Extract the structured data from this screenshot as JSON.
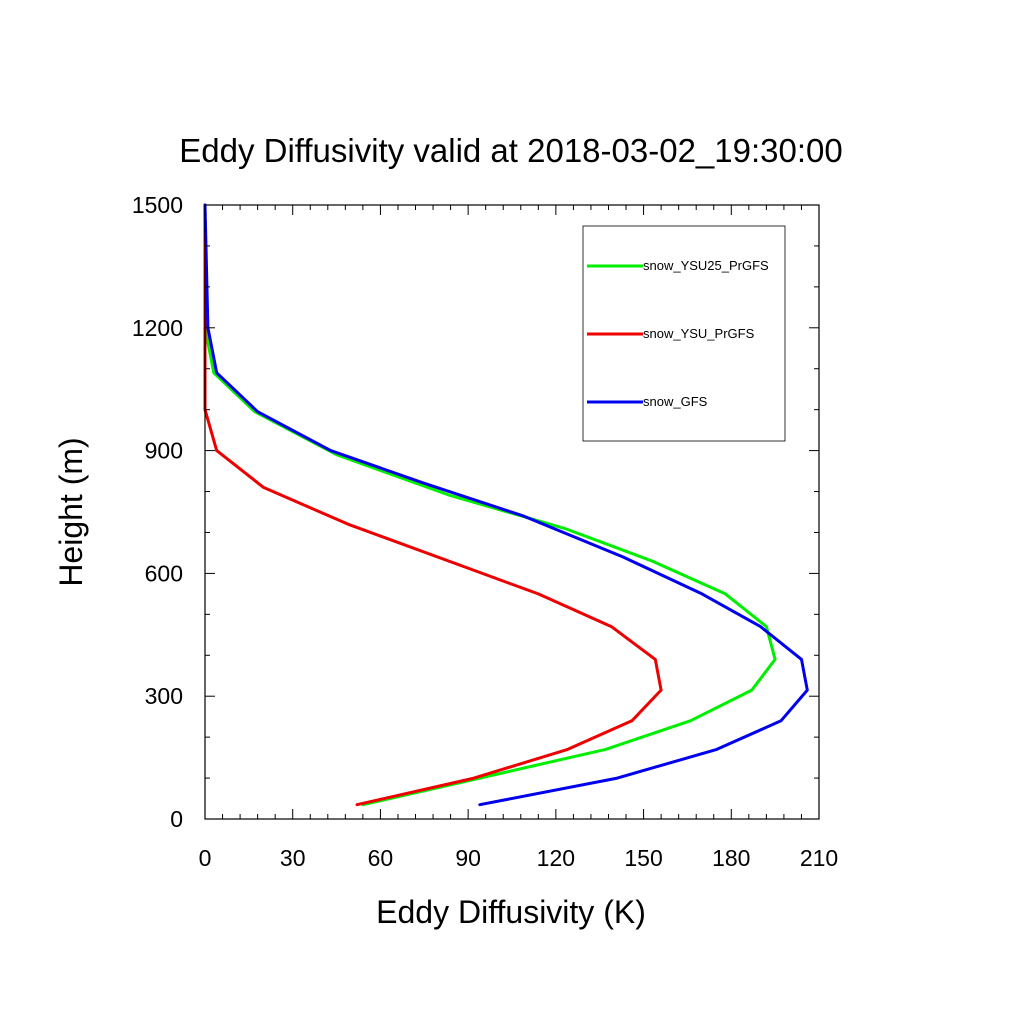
{
  "chart_data": {
    "type": "line",
    "title": "Eddy Diffusivity valid at 2018-03-02_19:30:00",
    "xlabel": "Eddy Diffusivity (K)",
    "ylabel": "Height (m)",
    "xlim": [
      0,
      210
    ],
    "ylim": [
      0,
      1500
    ],
    "x_ticks": [
      0,
      30,
      60,
      90,
      120,
      150,
      180,
      210
    ],
    "y_ticks": [
      0,
      300,
      600,
      900,
      1200,
      1500
    ],
    "x_tick_labels": [
      "0",
      "30",
      "60",
      "90",
      "120",
      "150",
      "180",
      "210"
    ],
    "y_tick_labels": [
      "0",
      "300",
      "600",
      "900",
      "1200",
      "1500"
    ],
    "grid": false,
    "legend_position": "top-right",
    "series": [
      {
        "name": "snow_YSU25_PrGFS",
        "color": "#00ee00",
        "points": [
          [
            54,
            35
          ],
          [
            94,
            100
          ],
          [
            137,
            170
          ],
          [
            166,
            240
          ],
          [
            187,
            315
          ],
          [
            195,
            390
          ],
          [
            192,
            470
          ],
          [
            178,
            550
          ],
          [
            153,
            630
          ],
          [
            123,
            710
          ],
          [
            84,
            790
          ],
          [
            45,
            890
          ],
          [
            17,
            995
          ],
          [
            3,
            1090
          ],
          [
            0,
            1200
          ],
          [
            0,
            1500
          ]
        ]
      },
      {
        "name": "snow_YSU_PrGFS",
        "color": "#ee0000",
        "points": [
          [
            52,
            35
          ],
          [
            92,
            100
          ],
          [
            124,
            170
          ],
          [
            146,
            240
          ],
          [
            156,
            315
          ],
          [
            154,
            390
          ],
          [
            139,
            470
          ],
          [
            114,
            550
          ],
          [
            93,
            605
          ],
          [
            49,
            720
          ],
          [
            20,
            810
          ],
          [
            4,
            900
          ],
          [
            0,
            1000
          ],
          [
            0,
            1200
          ],
          [
            0,
            1500
          ]
        ]
      },
      {
        "name": "snow_GFS",
        "color": "#0000ee",
        "points": [
          [
            94,
            35
          ],
          [
            141,
            100
          ],
          [
            175,
            170
          ],
          [
            197,
            240
          ],
          [
            206,
            315
          ],
          [
            204,
            390
          ],
          [
            190,
            470
          ],
          [
            170,
            550
          ],
          [
            143,
            640
          ],
          [
            109,
            740
          ],
          [
            75,
            820
          ],
          [
            43,
            900
          ],
          [
            18,
            995
          ],
          [
            4,
            1090
          ],
          [
            1,
            1200
          ],
          [
            0,
            1500
          ]
        ]
      }
    ]
  }
}
